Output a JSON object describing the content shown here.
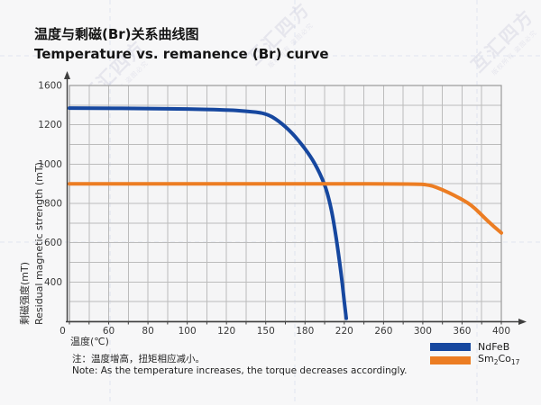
{
  "title": {
    "zh": "温度与剩磁(Br)关系曲线图",
    "en": "Temperature vs. remanence (Br) curve"
  },
  "axes": {
    "y_title_zh": "剩磁强度(mT)",
    "y_title_en": "Residual magnetic strength (mT)",
    "x_title": "温度(℃)",
    "origin_label": "0"
  },
  "note": {
    "zh": "注：温度增高，扭矩相应减小。",
    "en": "Note: As the temperature increases, the torque decreases accordingly."
  },
  "legend": {
    "items": [
      {
        "label": "NdFeB",
        "color": "#16479f"
      },
      {
        "label": "Sm2Co17",
        "parts": [
          "Sm",
          "2",
          "Co",
          "17"
        ],
        "color": "#ec7d23"
      }
    ]
  },
  "watermark": {
    "main": "互汇四方",
    "sub": "版权所有 盗图必究"
  },
  "colors": {
    "ndfeb": "#16479f",
    "sm2co17": "#ec7d23",
    "grid": "#bcbcbc",
    "plot_border": "#9a9a9a",
    "axis": "#3f3f3f",
    "tick_text": "#3a3a3a",
    "plot_bg": "#f5f5f6",
    "guide": "#b9c6e2"
  },
  "chart_data": {
    "type": "line",
    "title": "Temperature vs. remanence (Br) curve / 温度与剩磁(Br)关系曲线图",
    "xlabel": "温度(℃)",
    "ylabel": "剩磁强度 / Residual magnetic strength (mT)",
    "x_ticks": [
      0,
      60,
      80,
      100,
      120,
      150,
      180,
      220,
      260,
      300,
      360,
      400
    ],
    "y_ticks": [
      1600,
      1200,
      1000,
      800,
      600,
      400
    ],
    "x_origin_label": "0",
    "grid": true,
    "legend_position": "bottom-right",
    "axis_note": "tick labels are evenly spaced as drawn (non-linear value scale); y-axis bottom ≈ 200 mT",
    "series": [
      {
        "name": "NdFeB",
        "color": "#16479f",
        "points": [
          [
            0,
            1370
          ],
          [
            40,
            1369
          ],
          [
            80,
            1365
          ],
          [
            100,
            1361
          ],
          [
            120,
            1352
          ],
          [
            135,
            1340
          ],
          [
            150,
            1318
          ],
          [
            160,
            1240
          ],
          [
            170,
            1160
          ],
          [
            180,
            1080
          ],
          [
            190,
            1005
          ],
          [
            200,
            900
          ],
          [
            205,
            810
          ],
          [
            208,
            740
          ],
          [
            212,
            620
          ],
          [
            215,
            510
          ],
          [
            218,
            395
          ],
          [
            220,
            300
          ],
          [
            222,
            215
          ]
        ]
      },
      {
        "name": "Sm2Co17",
        "color": "#ec7d23",
        "points": [
          [
            0,
            900
          ],
          [
            100,
            900
          ],
          [
            200,
            900
          ],
          [
            290,
            899
          ],
          [
            310,
            895
          ],
          [
            330,
            870
          ],
          [
            350,
            838
          ],
          [
            370,
            792
          ],
          [
            385,
            715
          ],
          [
            400,
            650
          ]
        ]
      }
    ]
  }
}
